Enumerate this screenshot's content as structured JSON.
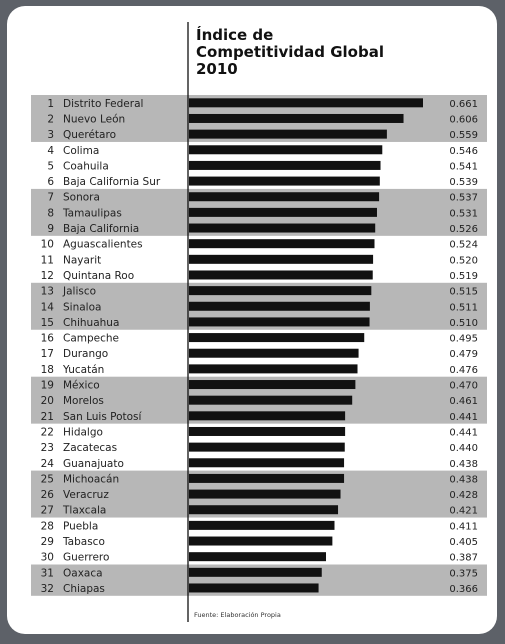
{
  "chart_data": {
    "type": "bar",
    "orientation": "horizontal",
    "title": [
      "Índice de",
      "Competitividad Global",
      "2010"
    ],
    "source": "Fuente: Elaboración Propia",
    "band_color": "#b7b7b7",
    "bar_color": "#111111",
    "rows": [
      {
        "rank": "1",
        "name": "Distrito Federal",
        "value": 0.661
      },
      {
        "rank": "2",
        "name": "Nuevo León",
        "value": 0.606
      },
      {
        "rank": "3",
        "name": "Querétaro",
        "value": 0.559
      },
      {
        "rank": "4",
        "name": "Colima",
        "value": 0.546
      },
      {
        "rank": "5",
        "name": "Coahuila",
        "value": 0.541
      },
      {
        "rank": "6",
        "name": "Baja California Sur",
        "value": 0.539
      },
      {
        "rank": "7",
        "name": "Sonora",
        "value": 0.537
      },
      {
        "rank": "8",
        "name": "Tamaulipas",
        "value": 0.531
      },
      {
        "rank": "9",
        "name": "Baja California",
        "value": 0.526
      },
      {
        "rank": "10",
        "name": "Aguascalientes",
        "value": 0.524
      },
      {
        "rank": "11",
        "name": "Nayarit",
        "value": 0.52
      },
      {
        "rank": "12",
        "name": "Quintana Roo",
        "value": 0.519
      },
      {
        "rank": "13",
        "name": "Jalisco",
        "value": 0.515
      },
      {
        "rank": "14",
        "name": "Sinaloa",
        "value": 0.511
      },
      {
        "rank": "15",
        "name": "Chihuahua",
        "value": 0.51
      },
      {
        "rank": "16",
        "name": "Campeche",
        "value": 0.495
      },
      {
        "rank": "17",
        "name": "Durango",
        "value": 0.479
      },
      {
        "rank": "18",
        "name": "Yucatán",
        "value": 0.476
      },
      {
        "rank": "19",
        "name": "México",
        "value": 0.47
      },
      {
        "rank": "20",
        "name": "Morelos",
        "value": 0.461
      },
      {
        "rank": "21",
        "name": "San Luis Potosí",
        "value": 0.441
      },
      {
        "rank": "22",
        "name": "Hidalgo",
        "value": 0.441
      },
      {
        "rank": "23",
        "name": "Zacatecas",
        "value": 0.44
      },
      {
        "rank": "24",
        "name": "Guanajuato",
        "value": 0.438
      },
      {
        "rank": "25",
        "name": "Michoacán",
        "value": 0.438
      },
      {
        "rank": "26",
        "name": "Veracruz",
        "value": 0.428
      },
      {
        "rank": "27",
        "name": "Tlaxcala",
        "value": 0.421
      },
      {
        "rank": "28",
        "name": "Puebla",
        "value": 0.411
      },
      {
        "rank": "29",
        "name": "Tabasco",
        "value": 0.405
      },
      {
        "rank": "30",
        "name": "Guerrero",
        "value": 0.387
      },
      {
        "rank": "31",
        "name": "Oaxaca",
        "value": 0.375
      },
      {
        "rank": "32",
        "name": "Chiapas",
        "value": 0.366
      }
    ],
    "value_display": [
      "0.661",
      "0.606",
      "0.559",
      "0.546",
      "0.541",
      "0.539",
      "0.537",
      "0.531",
      "0.526",
      "0.524",
      "0.520",
      "0.519",
      "0.515",
      "0.511",
      "0.510",
      "0.495",
      "0.479",
      "0.476",
      "0.470",
      "0.461",
      "0.441",
      "0.441",
      "0.440",
      "0.438",
      "0.438",
      "0.428",
      "0.421",
      "0.411",
      "0.405",
      "0.387",
      "0.375",
      "0.366"
    ]
  }
}
